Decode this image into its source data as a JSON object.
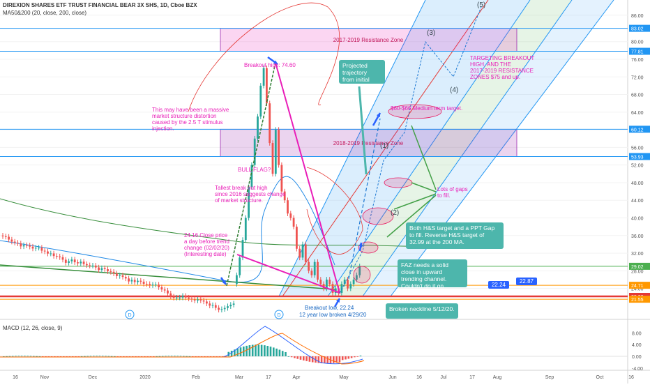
{
  "header": {
    "title": "DIREXION SHARES ETF TRUST FINANCIAL BEAR 3X SHS, 1D, Cboe BZX",
    "indicator": "MA50&200 (20, close, 200, close)"
  },
  "macd": {
    "label": "MACD (12, 26, close, 9)",
    "ticks": [
      "8.00",
      "4.00",
      "0.00",
      "-4.00"
    ]
  },
  "chart_data": {
    "type": "candlestick",
    "price_ticks": [
      86,
      80,
      76,
      72,
      68,
      64,
      60,
      56,
      52,
      48,
      44,
      40,
      36,
      32,
      28,
      24
    ],
    "ylim": [
      21,
      89
    ],
    "x_ticks": [
      "16",
      "Nov",
      "Dec",
      "2020",
      "Feb",
      "Mar",
      "17",
      "Apr",
      "May",
      "Jun",
      "16",
      "Jul",
      "17",
      "Aug",
      "Sep",
      "Oct",
      "16"
    ],
    "price_labels": [
      {
        "text": "83.02",
        "value": 83.02,
        "color": "#2196f3"
      },
      {
        "text": "77.81",
        "value": 77.81,
        "color": "#2196f3"
      },
      {
        "text": "60.12",
        "value": 60.12,
        "color": "#2196f3"
      },
      {
        "text": "53.93",
        "value": 53.93,
        "color": "#2196f3"
      },
      {
        "text": "29.02",
        "value": 29.02,
        "color": "#4caf50"
      },
      {
        "text": "24.71",
        "value": 24.71,
        "color": "#ff9800"
      },
      {
        "text": "22.20",
        "value": 22.2,
        "color": "#e53935"
      },
      {
        "text": "21.55",
        "value": 21.55,
        "color": "#ff9800"
      }
    ],
    "zones": [
      {
        "label": "2017-2019 Resistance Zone",
        "top": 83.02,
        "bottom": 77.81
      },
      {
        "label": "2018-2019 Resistance Zone",
        "top": 60.12,
        "bottom": 53.93
      }
    ],
    "callouts": [
      {
        "label": "22.24",
        "value": 22.24
      },
      {
        "label": "22.87",
        "value": 22.87
      }
    ],
    "annotations": {
      "breakout_high": "Breakout high: 74.60",
      "stimulus": "This may have been a massive market structure distortion caused by the 2.5 T stimulus injection.",
      "bull_flag": "BULL FLAG?",
      "tallest_break": "Tallest break out high since 2016 suggests change of market structure.",
      "close_price": "24.16 Close price a day before trend change (02/02/20) (Interesting date)",
      "breakout_low": "Breakout low, 22.24",
      "low_broken": "12 year low broken 4/29/20",
      "projected": "Projected trajectory from initial bull flag.",
      "targeting": "TARGETING BREAKOUT HIGH, AND THE 2017-2019 RESISTANCE ZONES $75 and up.",
      "medium_target": "$60-$66 Medium term target.",
      "gaps": "Lots of gaps to fill.",
      "hs_target": "Both H&S target and a PPT Gap to fill. Reverse H&S target of 32.99 at the 200 MA.",
      "faz_close": "FAZ needs a solid close in upward trending channel.  Couldn't do it on 5/13/20.",
      "neckline": "Broken neckline 5/12/20.",
      "w1": "(1)",
      "w2": "(2)",
      "w3": "(3)",
      "w4": "(4)",
      "w5": "(5)",
      "d_marker": "D"
    },
    "colors": {
      "up": "#26a69a",
      "down": "#ef5350",
      "accent": "#2962ff",
      "magenta": "#e91eb8"
    }
  }
}
